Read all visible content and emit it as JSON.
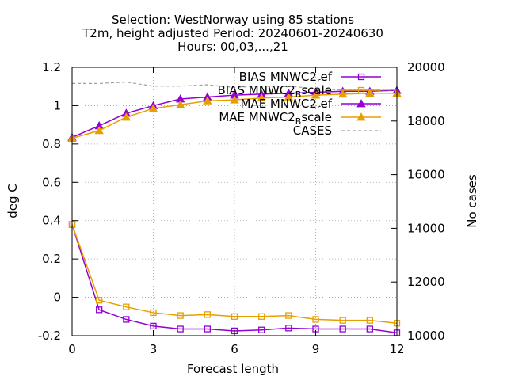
{
  "chart_data": {
    "type": "line",
    "title_lines": [
      "Selection: WestNorway using    85 stations",
      "T2m, height adjusted   Period: 20240601-20240630",
      "Hours: 00,03,...,21"
    ],
    "xlabel": "Forecast length",
    "ylabel": "deg C",
    "y2label": "No cases",
    "xlim": [
      0,
      12
    ],
    "ylim": [
      -0.2,
      1.2
    ],
    "y2lim": [
      10000,
      20000
    ],
    "xticks": [
      0,
      3,
      6,
      9,
      12
    ],
    "yticks": [
      -0.2,
      0,
      0.2,
      0.4,
      0.6,
      0.8,
      1,
      1.2
    ],
    "ytick_labels": [
      "-0.2",
      "0",
      "0.2",
      "0.4",
      "0.6",
      "0.8",
      "1",
      "1.2"
    ],
    "y2ticks": [
      10000,
      12000,
      14000,
      16000,
      18000,
      20000
    ],
    "grid": true,
    "legend_position": "top-right",
    "x": [
      0,
      1,
      2,
      3,
      4,
      5,
      6,
      7,
      8,
      9,
      10,
      11,
      12
    ],
    "series": [
      {
        "name": "BIAS MNWC2_ref",
        "legend_label": "BIAS MNWC2",
        "legend_sub": "r",
        "legend_tail": "ef",
        "color": "#9400d3",
        "marker": "square",
        "axis": "y",
        "values": [
          0.38,
          -0.065,
          -0.115,
          -0.15,
          -0.165,
          -0.165,
          -0.175,
          -0.17,
          -0.16,
          -0.165,
          -0.165,
          -0.165,
          -0.185
        ]
      },
      {
        "name": "BIAS MNWC2_Bscale",
        "legend_label": "BIAS MNWC2",
        "legend_sub": "B",
        "legend_tail": "scale",
        "color": "#e69f00",
        "marker": "square",
        "axis": "y",
        "values": [
          0.38,
          -0.015,
          -0.05,
          -0.08,
          -0.095,
          -0.09,
          -0.1,
          -0.1,
          -0.095,
          -0.115,
          -0.12,
          -0.12,
          -0.135
        ]
      },
      {
        "name": "MAE MNWC2_ref",
        "legend_label": "MAE MNWC2",
        "legend_sub": "r",
        "legend_tail": "ef",
        "color": "#9400d3",
        "marker": "triangle",
        "axis": "y",
        "values": [
          0.835,
          0.895,
          0.96,
          1.0,
          1.035,
          1.045,
          1.055,
          1.06,
          1.065,
          1.07,
          1.075,
          1.075,
          1.08
        ]
      },
      {
        "name": "MAE MNWC2_Bscale",
        "legend_label": "MAE MNWC2",
        "legend_sub": "B",
        "legend_tail": "scale",
        "color": "#e69f00",
        "marker": "triangle",
        "axis": "y",
        "values": [
          0.83,
          0.87,
          0.94,
          0.985,
          1.005,
          1.025,
          1.03,
          1.04,
          1.045,
          1.055,
          1.06,
          1.065,
          1.065
        ]
      },
      {
        "name": "CASES",
        "legend_label": "CASES",
        "color": "#a0a0a0",
        "marker": "none",
        "dashed": true,
        "axis": "y2",
        "values": [
          19400,
          19400,
          19450,
          19300,
          19300,
          19350,
          19250,
          19300,
          19300,
          19200,
          19150,
          19150,
          19150
        ]
      }
    ]
  }
}
